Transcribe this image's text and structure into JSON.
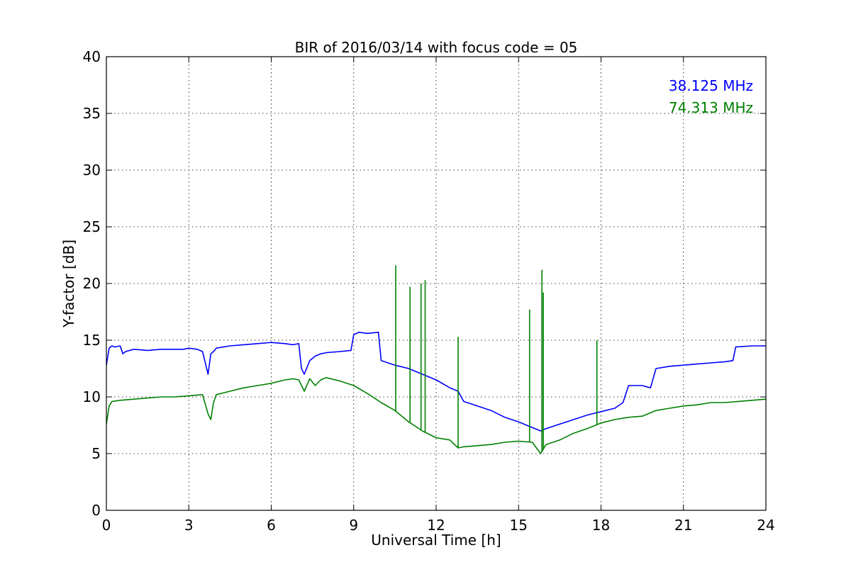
{
  "chart_data": {
    "type": "line",
    "title": "BIR of 2016/03/14 with focus code = 05",
    "xlabel": "Universal Time [h]",
    "ylabel": "Y-factor [dB]",
    "xlim": [
      0,
      24
    ],
    "ylim": [
      0,
      40
    ],
    "x_ticks": [
      0,
      3,
      6,
      9,
      12,
      15,
      18,
      21,
      24
    ],
    "y_ticks": [
      0,
      5,
      10,
      15,
      20,
      25,
      30,
      35,
      40
    ],
    "grid": true,
    "legend_position": "top-right",
    "series": [
      {
        "name": "38.125 MHz",
        "color": "#0000ff",
        "x": [
          0.0,
          0.1,
          0.2,
          0.3,
          0.5,
          0.6,
          0.7,
          1.0,
          1.5,
          2.0,
          2.5,
          2.8,
          3.0,
          3.3,
          3.5,
          3.7,
          3.8,
          3.9,
          4.0,
          4.5,
          5.0,
          5.5,
          6.0,
          6.5,
          6.8,
          7.0,
          7.1,
          7.2,
          7.4,
          7.6,
          7.8,
          8.0,
          8.5,
          8.9,
          9.0,
          9.2,
          9.5,
          9.9,
          10.0,
          10.5,
          11.0,
          11.5,
          12.0,
          12.5,
          12.8,
          13.0,
          13.5,
          14.0,
          14.5,
          15.0,
          15.5,
          15.8,
          16.0,
          16.5,
          17.0,
          17.5,
          18.0,
          18.5,
          18.8,
          19.0,
          19.5,
          19.8,
          20.0,
          20.5,
          21.0,
          21.5,
          22.0,
          22.5,
          22.8,
          22.9,
          23.5,
          24.0
        ],
        "y": [
          12.8,
          14.3,
          14.5,
          14.4,
          14.5,
          13.8,
          14.0,
          14.2,
          14.1,
          14.2,
          14.2,
          14.2,
          14.3,
          14.2,
          14.0,
          12.0,
          13.8,
          14.0,
          14.3,
          14.5,
          14.6,
          14.7,
          14.8,
          14.7,
          14.6,
          14.7,
          12.5,
          12.0,
          13.2,
          13.6,
          13.8,
          13.9,
          14.0,
          14.1,
          15.5,
          15.7,
          15.6,
          15.7,
          13.2,
          12.8,
          12.5,
          12.0,
          11.5,
          10.8,
          10.5,
          9.6,
          9.2,
          8.8,
          8.2,
          7.8,
          7.3,
          7.0,
          7.2,
          7.6,
          8.0,
          8.4,
          8.7,
          9.0,
          9.5,
          11.0,
          11.0,
          10.8,
          12.5,
          12.7,
          12.8,
          12.9,
          13.0,
          13.1,
          13.2,
          14.4,
          14.5,
          14.5
        ]
      },
      {
        "name": "74.313 MHz",
        "color": "#008000",
        "x": [
          0.0,
          0.1,
          0.2,
          0.5,
          1.0,
          1.5,
          2.0,
          2.5,
          3.0,
          3.5,
          3.7,
          3.8,
          3.9,
          4.0,
          4.5,
          5.0,
          5.5,
          6.0,
          6.5,
          6.8,
          7.0,
          7.2,
          7.4,
          7.6,
          7.8,
          8.0,
          8.5,
          9.0,
          9.5,
          10.0,
          10.5,
          11.0,
          11.5,
          12.0,
          12.5,
          12.8,
          13.0,
          13.5,
          14.0,
          14.5,
          15.0,
          15.5,
          15.8,
          16.0,
          16.5,
          17.0,
          17.5,
          18.0,
          18.5,
          19.0,
          19.5,
          20.0,
          20.5,
          21.0,
          21.5,
          22.0,
          22.5,
          23.0,
          23.5,
          24.0
        ],
        "y": [
          7.6,
          9.2,
          9.6,
          9.7,
          9.8,
          9.9,
          10.0,
          10.0,
          10.1,
          10.2,
          8.5,
          8.0,
          9.5,
          10.2,
          10.5,
          10.8,
          11.0,
          11.2,
          11.5,
          11.6,
          11.5,
          10.5,
          11.6,
          11.0,
          11.5,
          11.7,
          11.4,
          11.0,
          10.3,
          9.5,
          8.8,
          7.8,
          7.0,
          6.4,
          6.2,
          5.5,
          5.6,
          5.7,
          5.8,
          6.0,
          6.1,
          6.0,
          5.0,
          5.8,
          6.2,
          6.8,
          7.2,
          7.7,
          8.0,
          8.2,
          8.3,
          8.8,
          9.0,
          9.2,
          9.3,
          9.5,
          9.5,
          9.6,
          9.7,
          9.8
        ]
      }
    ],
    "spikes": [
      {
        "series": "74.313 MHz",
        "x": 10.53,
        "y": 21.6
      },
      {
        "series": "74.313 MHz",
        "x": 11.05,
        "y": 19.7
      },
      {
        "series": "74.313 MHz",
        "x": 11.45,
        "y": 20.0
      },
      {
        "series": "74.313 MHz",
        "x": 11.6,
        "y": 20.3
      },
      {
        "series": "74.313 MHz",
        "x": 12.8,
        "y": 15.3
      },
      {
        "series": "74.313 MHz",
        "x": 15.4,
        "y": 17.7
      },
      {
        "series": "74.313 MHz",
        "x": 15.85,
        "y": 21.2
      },
      {
        "series": "74.313 MHz",
        "x": 15.9,
        "y": 19.2
      },
      {
        "series": "74.313 MHz",
        "x": 17.85,
        "y": 15.0
      }
    ]
  }
}
